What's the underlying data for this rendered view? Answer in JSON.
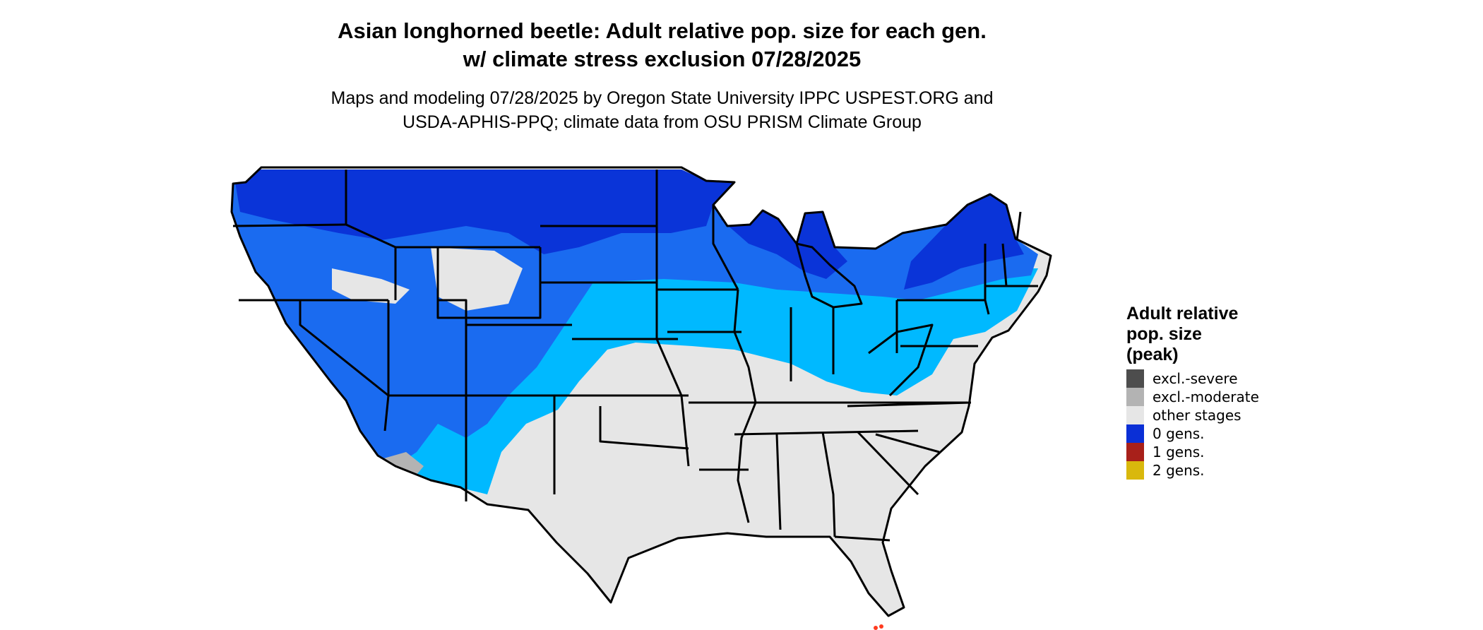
{
  "title_lines": [
    "Asian longhorned beetle: Adult relative pop. size for each gen.",
    "w/ climate stress exclusion 07/28/2025"
  ],
  "subtitle_lines": [
    "Maps and modeling 07/28/2025 by Oregon State University IPPC USPEST.ORG and",
    "USDA-APHIS-PPQ; climate data from OSU PRISM Climate Group"
  ],
  "legend": {
    "title_lines": [
      "Adult relative",
      "pop. size",
      "(peak)"
    ],
    "items": [
      {
        "label": "excl.-severe",
        "color": "#4d4d4d"
      },
      {
        "label": "excl.-moderate",
        "color": "#b3b3b3"
      },
      {
        "label": "other stages",
        "color": "#e6e6e6"
      },
      {
        "label": "0 gens.",
        "color": "#0a2fd6"
      },
      {
        "label": "1 gens.",
        "color": "#a8201a"
      },
      {
        "label": "2 gens.",
        "color": "#d9b80c"
      }
    ]
  },
  "map_colors": {
    "state_border": "#000000",
    "other_stages": "#e6e6e6",
    "excl_moderate": "#b3b3b3",
    "zero_gens_dark": "#0a34d8",
    "zero_gens_mid": "#1a6bf0",
    "zero_gens_light": "#00b9ff",
    "florida_keys": "#ff3b1f"
  }
}
